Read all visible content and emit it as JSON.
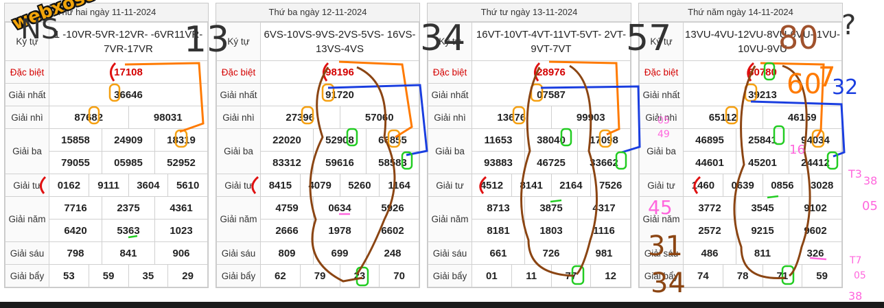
{
  "labels": {
    "ky_tu": "Ký tự",
    "dac_biet": "Đặc biệt",
    "giai_nhat": "Giải nhất",
    "giai_nhi": "Giải nhì",
    "giai_ba": "Giải ba",
    "giai_tu": "Giải tư",
    "giai_nam": "Giải năm",
    "giai_sau": "Giải sáu",
    "giai_bay": "Giải bẩy"
  },
  "panels": [
    {
      "date": "Thứ hai ngày 11-11-2024",
      "ky_tu": "1 -10VR-5VR-12VR- -6VR11VR-7VR-17VR",
      "dac_biet": "17108",
      "giai_nhat": "36646",
      "giai_nhi": [
        "87682",
        "98031"
      ],
      "giai_ba": [
        [
          "15858",
          "24909",
          "18319"
        ],
        [
          "79055",
          "05985",
          "52952"
        ]
      ],
      "giai_tu": [
        "0162",
        "9111",
        "3604",
        "5610"
      ],
      "giai_nam": [
        [
          "7716",
          "2375",
          "4361"
        ],
        [
          "6420",
          "5363",
          "1023"
        ]
      ],
      "giai_sau": [
        "798",
        "841",
        "906"
      ],
      "giai_bay": [
        "53",
        "59",
        "35",
        "29"
      ]
    },
    {
      "date": "Thứ ba ngày 12-11-2024",
      "ky_tu": "6VS-10VS-9VS-2VS-5VS- 16VS-13VS-4VS",
      "dac_biet": "98196",
      "giai_nhat": "91720",
      "giai_nhi": [
        "27396",
        "57060"
      ],
      "giai_ba": [
        [
          "22020",
          "52908",
          "66855"
        ],
        [
          "83312",
          "59616",
          "58583"
        ]
      ],
      "giai_tu": [
        "8415",
        "4079",
        "5260",
        "1164"
      ],
      "giai_nam": [
        [
          "4759",
          "0634",
          "5926"
        ],
        [
          "2666",
          "1978",
          "6602"
        ]
      ],
      "giai_sau": [
        "809",
        "699",
        "248"
      ],
      "giai_bay": [
        "62",
        "79",
        "23",
        "70"
      ]
    },
    {
      "date": "Thứ tư ngày 13-11-2024",
      "ky_tu": "16VT-10VT-4VT-11VT-5VT- 2VT-9VT-7VT",
      "dac_biet": "28976",
      "giai_nhat": "07587",
      "giai_nhi": [
        "13676",
        "99903"
      ],
      "giai_ba": [
        [
          "11653",
          "38040",
          "17098"
        ],
        [
          "93883",
          "46725",
          "33662"
        ]
      ],
      "giai_tu": [
        "4512",
        "8141",
        "2164",
        "7526"
      ],
      "giai_nam": [
        [
          "8713",
          "3875",
          "4317"
        ],
        [
          "8181",
          "1803",
          "1116"
        ]
      ],
      "giai_sau": [
        "661",
        "726",
        "981"
      ],
      "giai_bay": [
        "01",
        "11",
        "77",
        "12"
      ]
    },
    {
      "date": "Thứ năm ngày 14-11-2024",
      "ky_tu": "13VU-4VU-12VU-8VU-6VU- 1VU-10VU-9VU",
      "dac_biet": "60780",
      "giai_nhat": "39213",
      "giai_nhi": [
        "65112",
        "46159"
      ],
      "giai_ba": [
        [
          "46895",
          "25841",
          "94034"
        ],
        [
          "44601",
          "45201",
          "24412"
        ]
      ],
      "giai_tu": [
        "1460",
        "0639",
        "0856",
        "3028"
      ],
      "giai_nam": [
        [
          "3772",
          "3545",
          "9102"
        ],
        [
          "2572",
          "9215",
          "9602"
        ]
      ],
      "giai_sau": [
        "486",
        "811",
        "326"
      ],
      "giai_bay": [
        "74",
        "78",
        "71",
        "59"
      ]
    }
  ],
  "watermark": "webxoso.net",
  "annotations": {
    "ns": "NS",
    "n13": "13",
    "n34": "34",
    "n57": "57",
    "q": "?",
    "n80": "80",
    "n60": "60",
    "n7": "7",
    "n32": "32",
    "n05": "05",
    "n49": "49",
    "n16": "16",
    "t3": "T3",
    "n38a": "38",
    "n05b": "05",
    "n45": "45",
    "n31": "31",
    "n34b": "34",
    "t7": "T7",
    "n05c": "05",
    "n38b": "38"
  },
  "colors": {
    "red_label": "#d40000",
    "watermark": "#f2a40a",
    "pen_red": "#e01010",
    "pen_orange": "#ff7a00",
    "pen_blue": "#1a3ee0",
    "pen_green": "#22cc22",
    "pen_brown": "#8b4513",
    "pen_pink": "#ff66dd",
    "pen_dark": "#333333"
  }
}
